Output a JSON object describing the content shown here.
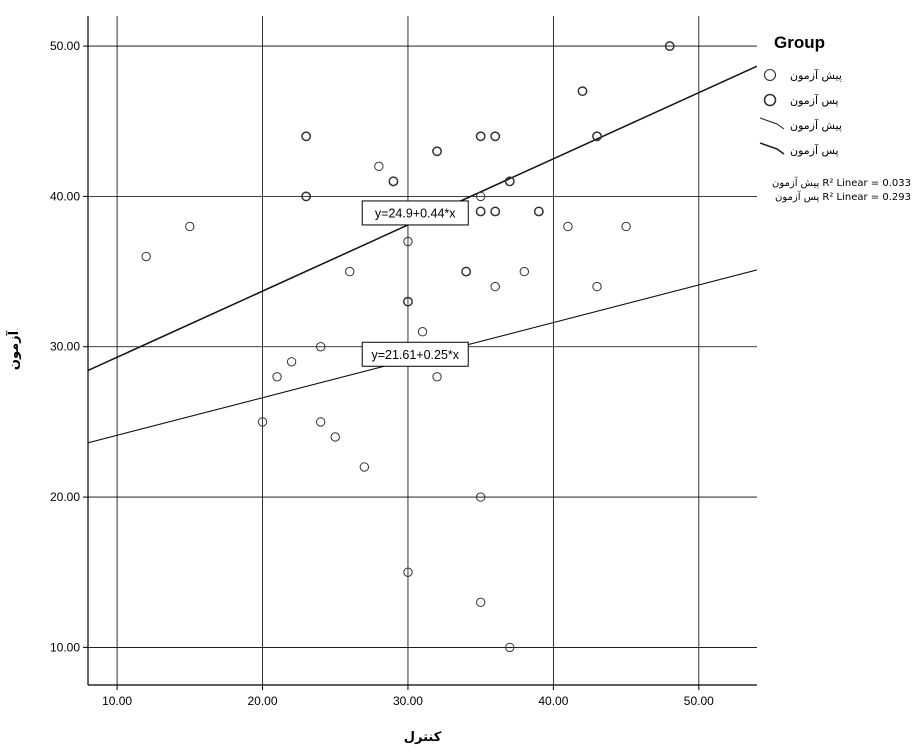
{
  "chart_data": {
    "type": "scatter",
    "xlabel": "کنترل",
    "ylabel": "آزمون",
    "xlim": [
      8,
      54
    ],
    "ylim": [
      7.5,
      52
    ],
    "x_ticks": [
      "10.00",
      "20.00",
      "30.00",
      "40.00",
      "50.00"
    ],
    "y_ticks": [
      "10.00",
      "20.00",
      "30.00",
      "40.00",
      "50.00"
    ],
    "x_tick_values": [
      10,
      20,
      30,
      40,
      50
    ],
    "y_tick_values": [
      10,
      20,
      30,
      40,
      50
    ],
    "grid": true,
    "legend_position": "top-right",
    "legend": {
      "title": "Group",
      "entries": [
        {
          "type": "marker",
          "label": "پیش آزمون"
        },
        {
          "type": "marker",
          "label": "پس آزمون"
        },
        {
          "type": "line",
          "label": "پیش آزمون"
        },
        {
          "type": "line",
          "label": "پس آزمون"
        }
      ],
      "r2_lines": [
        {
          "group": "پیش آزمون",
          "text": "R² Linear = 0.033"
        },
        {
          "group": "پس آزمون",
          "text": "R² Linear = 0.293"
        }
      ]
    },
    "series": [
      {
        "name": "پیش آزمون",
        "marker": "open-circle",
        "points": [
          [
            12,
            36
          ],
          [
            15,
            38
          ],
          [
            20,
            25
          ],
          [
            21,
            28
          ],
          [
            22,
            29
          ],
          [
            24,
            30
          ],
          [
            24,
            25
          ],
          [
            25,
            24
          ],
          [
            26,
            35
          ],
          [
            27,
            22
          ],
          [
            28,
            42
          ],
          [
            30,
            37
          ],
          [
            30,
            33
          ],
          [
            30,
            15
          ],
          [
            31,
            31
          ],
          [
            32,
            28
          ],
          [
            35,
            40
          ],
          [
            35,
            20
          ],
          [
            35,
            13
          ],
          [
            36,
            34
          ],
          [
            37,
            10
          ],
          [
            38,
            35
          ],
          [
            41,
            38
          ],
          [
            43,
            34
          ],
          [
            45,
            38
          ]
        ]
      },
      {
        "name": "پس آزمون",
        "marker": "open-circle",
        "points": [
          [
            23,
            44
          ],
          [
            23,
            40
          ],
          [
            29,
            41
          ],
          [
            30,
            33
          ],
          [
            32,
            43
          ],
          [
            34,
            35
          ],
          [
            35,
            44
          ],
          [
            35,
            39
          ],
          [
            36,
            44
          ],
          [
            36,
            39
          ],
          [
            37,
            41
          ],
          [
            39,
            39
          ],
          [
            42,
            47
          ],
          [
            43,
            44
          ],
          [
            48,
            50
          ]
        ]
      }
    ],
    "fit_lines": [
      {
        "name": "پس آزمون",
        "equation": "y=24.9+0.44*x",
        "intercept": 24.9,
        "slope": 0.44
      },
      {
        "name": "پیش آزمون",
        "equation": "y=21.61+0.25*x",
        "intercept": 21.61,
        "slope": 0.25
      }
    ]
  }
}
